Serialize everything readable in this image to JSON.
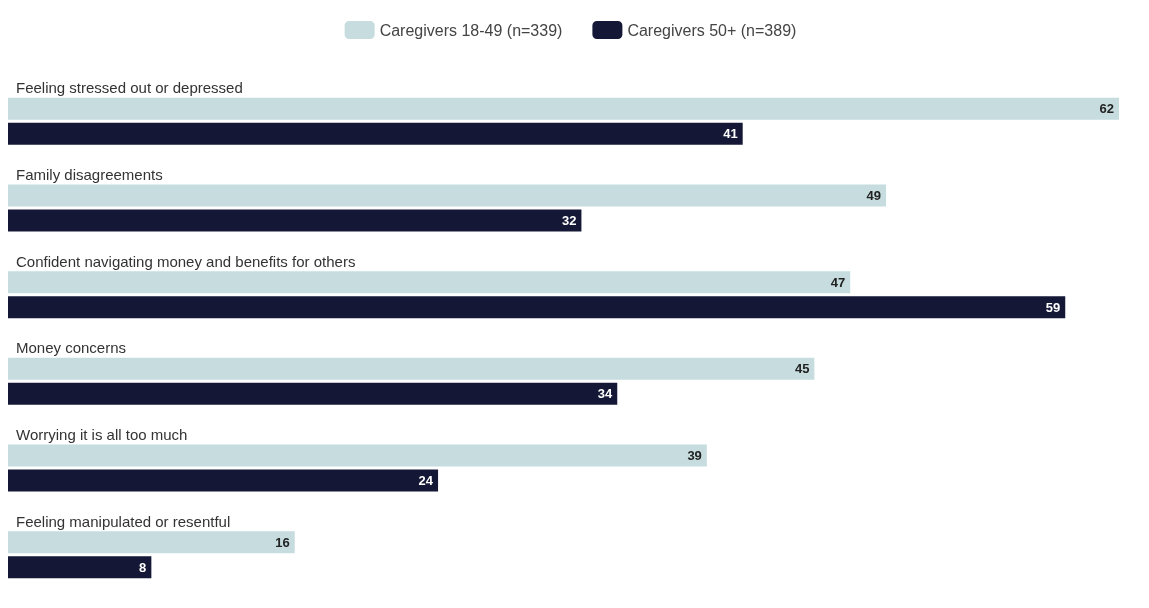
{
  "chart_data": {
    "type": "bar",
    "orientation": "horizontal",
    "categories": [
      "Feeling stressed out or depressed",
      "Family disagreements",
      "Confident navigating money and benefits for others",
      "Money concerns",
      "Worrying it is all too much",
      "Feeling manipulated or resentful"
    ],
    "series": [
      {
        "name": "Caregivers 18-49 (n=339)",
        "color": "#c6dcdf",
        "values": [
          62,
          49,
          47,
          45,
          39,
          16
        ]
      },
      {
        "name": "Caregivers 50+ (n=389)",
        "color": "#141736",
        "values": [
          41,
          32,
          59,
          34,
          24,
          8
        ]
      }
    ],
    "data_labels": true,
    "legend": "top"
  }
}
